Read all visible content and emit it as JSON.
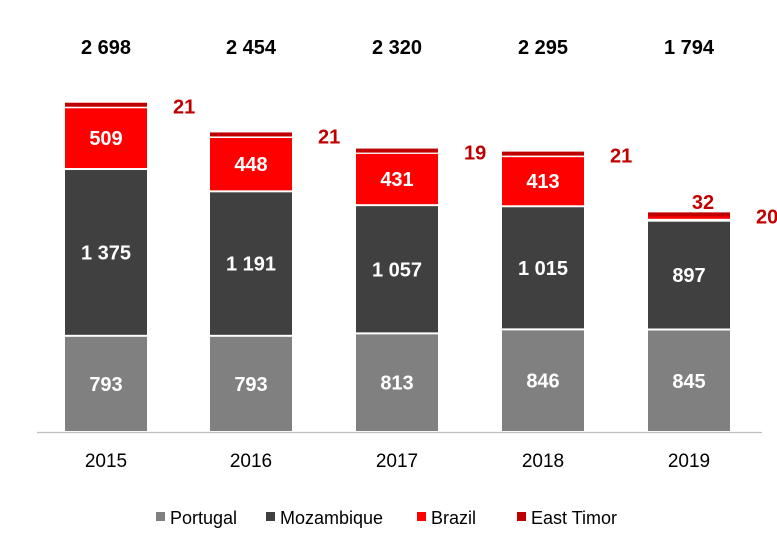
{
  "chart_data": {
    "type": "bar",
    "stacked": true,
    "title": "",
    "xlabel": "",
    "ylabel": "",
    "categories": [
      "2015",
      "2016",
      "2017",
      "2018",
      "2019"
    ],
    "series": [
      {
        "name": "Portugal",
        "values": [
          793,
          793,
          813,
          846,
          845
        ],
        "value_labels": [
          "793",
          "793",
          "813",
          "846",
          "845"
        ],
        "color": "#808080"
      },
      {
        "name": "Mozambique",
        "values": [
          1375,
          1191,
          1057,
          1015,
          897
        ],
        "value_labels": [
          "1 375",
          "1 191",
          "1 057",
          "1 015",
          "897"
        ],
        "color": "#404040"
      },
      {
        "name": "Brazil",
        "values": [
          509,
          448,
          431,
          413,
          32
        ],
        "value_labels": [
          "509",
          "448",
          "431",
          "413",
          "32"
        ],
        "color": "#ff0000"
      },
      {
        "name": "East Timor",
        "values": [
          21,
          21,
          19,
          21,
          20
        ],
        "value_labels": [
          "21",
          "21",
          "19",
          "21",
          "20"
        ],
        "color": "#c00000"
      }
    ],
    "totals": [
      2698,
      2454,
      2320,
      2295,
      1794
    ],
    "total_labels": [
      "2 698",
      "2 454",
      "2 320",
      "2 295",
      "1 794"
    ],
    "ylim": [
      0,
      2698
    ],
    "grid": false,
    "legend_position": "bottom"
  }
}
